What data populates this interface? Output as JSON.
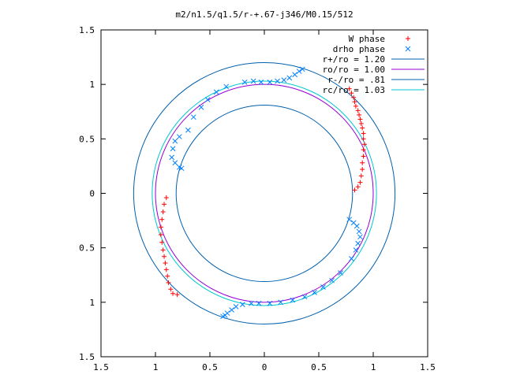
{
  "chart_data": {
    "type": "scatter",
    "title": "m2/n1.5/q1.5/r-+.67-j346/M0.15/512",
    "xlim": [
      -1.5,
      1.5
    ],
    "ylim": [
      -1.5,
      1.5
    ],
    "xticks": [
      -1.5,
      -1,
      -0.5,
      0,
      0.5,
      1,
      1.5
    ],
    "yticks": [
      -1.5,
      -1,
      -0.5,
      0,
      0.5,
      1,
      1.5
    ],
    "xtick_labels": [
      "1.5",
      "1",
      "0.5",
      "0",
      "0.5",
      "1",
      "1.5"
    ],
    "ytick_labels": [
      "1.5",
      "1",
      "0.5",
      "0",
      "0.5",
      "1",
      "1.5"
    ],
    "legend_position": "top-right",
    "series": [
      {
        "name": "W phase",
        "marker": "+",
        "color": "#ff0000",
        "points": [
          [
            0.78,
            0.96
          ],
          [
            0.8,
            0.92
          ],
          [
            0.82,
            0.88
          ],
          [
            0.83,
            0.84
          ],
          [
            0.84,
            0.8
          ],
          [
            0.86,
            0.76
          ],
          [
            0.87,
            0.72
          ],
          [
            0.88,
            0.68
          ],
          [
            0.89,
            0.64
          ],
          [
            0.9,
            0.6
          ],
          [
            0.91,
            0.55
          ],
          [
            0.91,
            0.5
          ],
          [
            0.92,
            0.45
          ],
          [
            0.91,
            0.4
          ],
          [
            0.91,
            0.34
          ],
          [
            0.9,
            0.28
          ],
          [
            0.9,
            0.22
          ],
          [
            0.89,
            0.16
          ],
          [
            0.88,
            0.1
          ],
          [
            0.86,
            0.06
          ],
          [
            0.83,
            0.03
          ],
          [
            -0.9,
            -0.04
          ],
          [
            -0.92,
            -0.1
          ],
          [
            -0.93,
            -0.17
          ],
          [
            -0.94,
            -0.24
          ],
          [
            -0.95,
            -0.31
          ],
          [
            -0.95,
            -0.38
          ],
          [
            -0.94,
            -0.45
          ],
          [
            -0.93,
            -0.52
          ],
          [
            -0.92,
            -0.58
          ],
          [
            -0.91,
            -0.64
          ],
          [
            -0.9,
            -0.7
          ],
          [
            -0.89,
            -0.76
          ],
          [
            -0.88,
            -0.82
          ],
          [
            -0.86,
            -0.88
          ],
          [
            -0.84,
            -0.92
          ],
          [
            -0.8,
            -0.93
          ]
        ]
      },
      {
        "name": "drho phase",
        "marker": "x",
        "color": "#0080ff",
        "points": [
          [
            -0.18,
            1.02
          ],
          [
            -0.1,
            1.03
          ],
          [
            -0.03,
            1.02
          ],
          [
            0.05,
            1.02
          ],
          [
            0.12,
            1.03
          ],
          [
            0.18,
            1.04
          ],
          [
            0.23,
            1.06
          ],
          [
            0.28,
            1.09
          ],
          [
            0.32,
            1.12
          ],
          [
            0.35,
            1.14
          ],
          [
            -0.35,
            0.98
          ],
          [
            -0.44,
            0.93
          ],
          [
            -0.52,
            0.86
          ],
          [
            -0.58,
            0.79
          ],
          [
            -0.65,
            0.7
          ],
          [
            -0.7,
            0.58
          ],
          [
            -0.78,
            0.52
          ],
          [
            -0.82,
            0.48
          ],
          [
            -0.84,
            0.41
          ],
          [
            -0.85,
            0.33
          ],
          [
            -0.82,
            0.28
          ],
          [
            -0.78,
            0.24
          ],
          [
            -0.76,
            0.23
          ],
          [
            0.78,
            -0.24
          ],
          [
            0.82,
            -0.27
          ],
          [
            0.85,
            -0.3
          ],
          [
            0.87,
            -0.35
          ],
          [
            0.88,
            -0.4
          ],
          [
            0.86,
            -0.46
          ],
          [
            0.84,
            -0.52
          ],
          [
            0.8,
            -0.6
          ],
          [
            0.7,
            -0.73
          ],
          [
            0.62,
            -0.8
          ],
          [
            0.54,
            -0.86
          ],
          [
            0.46,
            -0.91
          ],
          [
            0.37,
            -0.95
          ],
          [
            0.26,
            -0.98
          ],
          [
            0.15,
            -1.0
          ],
          [
            0.05,
            -1.01
          ],
          [
            -0.05,
            -1.01
          ],
          [
            -0.12,
            -1.01
          ],
          [
            -0.2,
            -1.02
          ],
          [
            -0.26,
            -1.04
          ],
          [
            -0.3,
            -1.07
          ],
          [
            -0.34,
            -1.1
          ],
          [
            -0.36,
            -1.12
          ],
          [
            -0.38,
            -1.13
          ]
        ]
      }
    ],
    "circles": [
      {
        "name": "r+/ro = 1.20",
        "radius": 1.2,
        "color": "#0060ad"
      },
      {
        "name": "ro/ro = 1.00",
        "radius": 1.0,
        "color": "#9400d3"
      },
      {
        "name": "r-/ro = .81",
        "radius": 0.81,
        "color": "#0060ad"
      },
      {
        "name": "rc/ro = 1.03",
        "radius": 1.03,
        "color": "#00c8d0"
      }
    ]
  }
}
